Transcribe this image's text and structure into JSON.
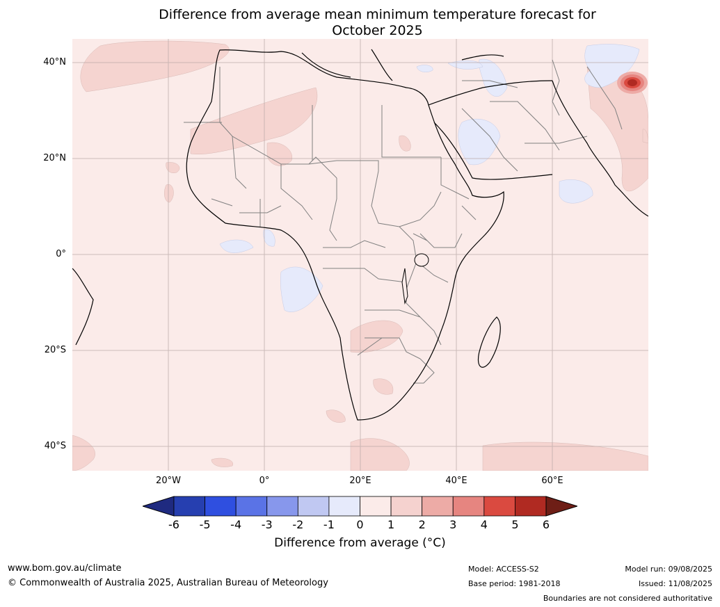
{
  "title_line1": "Difference from average mean minimum temperature forecast for",
  "title_line2": "October 2025",
  "map": {
    "lat_labels": [
      "40°N",
      "20°N",
      "0°",
      "20°S",
      "40°S"
    ],
    "lon_labels": [
      "20°W",
      "0°",
      "20°E",
      "40°E",
      "60°E"
    ]
  },
  "colorbar": {
    "ticks": [
      "-6",
      "-5",
      "-4",
      "-3",
      "-2",
      "-1",
      "0",
      "1",
      "2",
      "3",
      "4",
      "5",
      "6"
    ],
    "colors": [
      "#1f2a80",
      "#263fb0",
      "#2f4fe0",
      "#5a73e6",
      "#8797ec",
      "#c0c8f2",
      "#e6eafb",
      "#fbebe9",
      "#f5d2cf",
      "#edaba6",
      "#e68580",
      "#da4a40",
      "#b02a22",
      "#6e1e16"
    ],
    "label": "Difference from average (°C)"
  },
  "footer": {
    "url": "www.bom.gov.au/climate",
    "copyright": "© Commonwealth of Australia 2025, Australian Bureau of Meteorology",
    "model": "Model: ACCESS-S2",
    "base_period": "Base period: 1981-2018",
    "model_run": "Model run: 09/08/2025",
    "issued": "Issued: 11/08/2025",
    "disclaimer": "Boundaries are not considered authoritative"
  }
}
